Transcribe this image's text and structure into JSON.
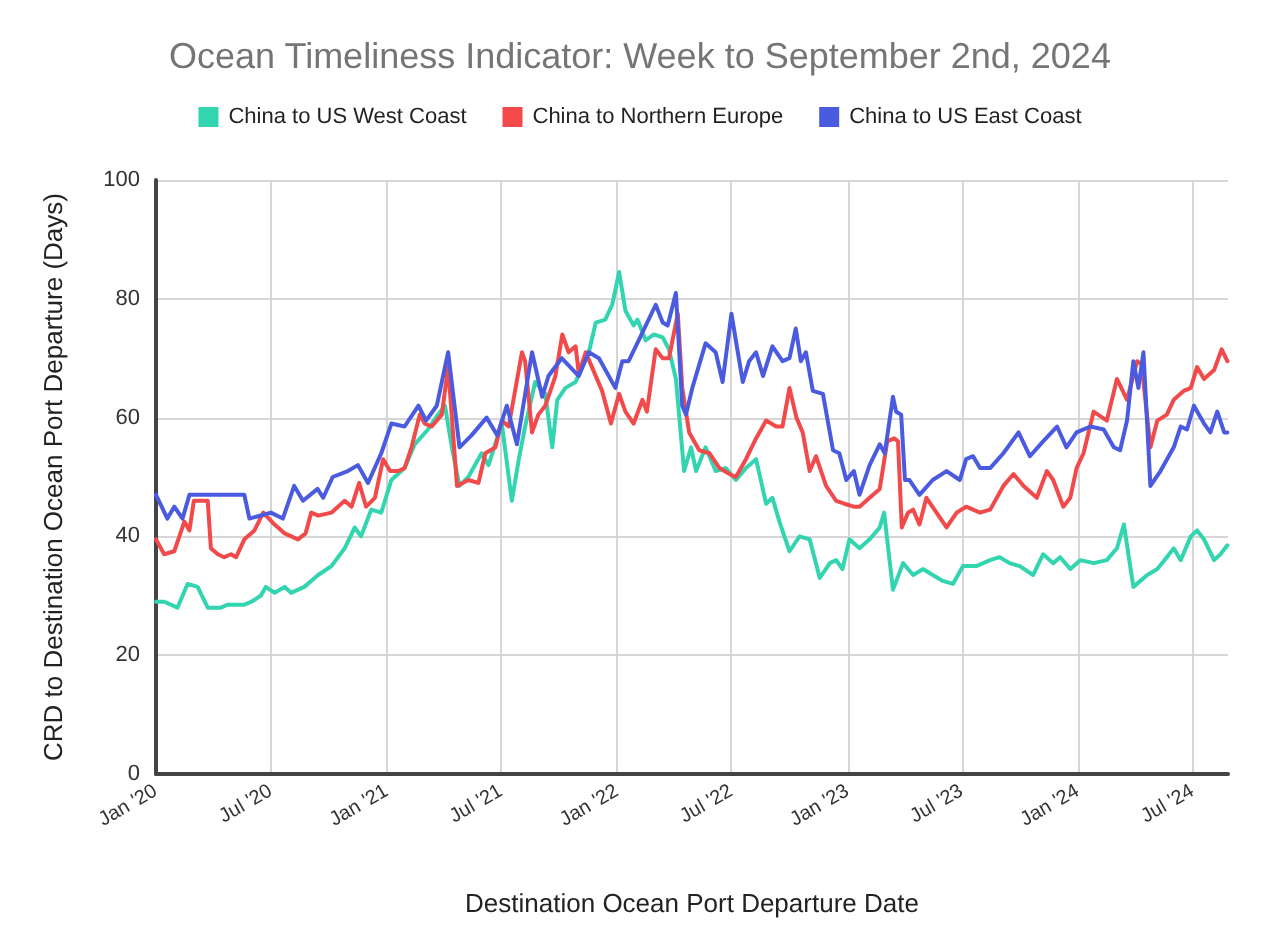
{
  "chart_data": {
    "type": "line",
    "title": "Ocean Timeliness Indicator: Week to September 2nd, 2024",
    "xlabel": "Destination Ocean Port Departure Date",
    "ylabel": "CRD to Destination Ocean Port Departure (Days)",
    "xlim": [
      "2020-01-01",
      "2024-08-26"
    ],
    "xticks": [
      {
        "value": "2020-01-01",
        "label": "Jan '20"
      },
      {
        "value": "2020-07-01",
        "label": "Jul '20"
      },
      {
        "value": "2021-01-01",
        "label": "Jan '21"
      },
      {
        "value": "2021-07-01",
        "label": "Jul '21"
      },
      {
        "value": "2022-01-01",
        "label": "Jan '22"
      },
      {
        "value": "2022-07-01",
        "label": "Jul '22"
      },
      {
        "value": "2023-01-01",
        "label": "Jan '23"
      },
      {
        "value": "2023-07-01",
        "label": "Jul '23"
      },
      {
        "value": "2024-01-01",
        "label": "Jan '24"
      },
      {
        "value": "2024-07-01",
        "label": "Jul '24"
      }
    ],
    "ylim": [
      0,
      100
    ],
    "yticks": [
      0,
      20,
      40,
      60,
      80,
      100
    ],
    "grid": true,
    "legend": "top",
    "marker": "none",
    "line_style": "solid",
    "series": [
      {
        "name": "China to US West Coast",
        "color": "#33d4b0",
        "x": [
          "2020-01-01",
          "2020-01-14",
          "2020-02-04",
          "2020-02-20",
          "2020-03-07",
          "2020-03-23",
          "2020-04-13",
          "2020-04-23",
          "2020-05-20",
          "2020-05-31",
          "2020-06-15",
          "2020-06-23",
          "2020-07-07",
          "2020-07-23",
          "2020-08-02",
          "2020-08-23",
          "2020-09-14",
          "2020-10-05",
          "2020-10-26",
          "2020-11-11",
          "2020-11-21",
          "2020-12-07",
          "2020-12-23",
          "2021-01-08",
          "2021-01-29",
          "2021-02-14",
          "2021-03-07",
          "2021-03-23",
          "2021-04-03",
          "2021-04-14",
          "2021-04-26",
          "2021-05-10",
          "2021-05-31",
          "2021-06-11",
          "2021-07-02",
          "2021-07-18",
          "2021-07-29",
          "2021-08-08",
          "2021-08-24",
          "2021-09-09",
          "2021-09-20",
          "2021-09-28",
          "2021-10-11",
          "2021-10-27",
          "2021-11-06",
          "2021-11-17",
          "2021-11-28",
          "2021-12-13",
          "2021-12-24",
          "2022-01-04",
          "2022-01-14",
          "2022-01-27",
          "2022-02-02",
          "2022-02-15",
          "2022-02-28",
          "2022-03-14",
          "2022-03-24",
          "2022-04-04",
          "2022-04-17",
          "2022-04-28",
          "2022-05-06",
          "2022-05-21",
          "2022-06-06",
          "2022-06-22",
          "2022-07-08",
          "2022-07-24",
          "2022-08-09",
          "2022-08-25",
          "2022-09-04",
          "2022-09-15",
          "2022-10-01",
          "2022-10-17",
          "2022-11-02",
          "2022-11-18",
          "2022-12-04",
          "2022-12-14",
          "2022-12-24",
          "2023-01-04",
          "2023-01-20",
          "2023-02-05",
          "2023-02-21",
          "2023-02-28",
          "2023-03-14",
          "2023-03-30",
          "2023-04-15",
          "2023-05-01",
          "2023-05-16",
          "2023-06-01",
          "2023-06-17",
          "2023-07-03",
          "2023-07-24",
          "2023-08-15",
          "2023-08-30",
          "2023-09-15",
          "2023-10-01",
          "2023-10-22",
          "2023-11-07",
          "2023-11-23",
          "2023-12-04",
          "2023-12-20",
          "2024-01-05",
          "2024-01-26",
          "2024-02-16",
          "2024-03-03",
          "2024-03-14",
          "2024-03-29",
          "2024-04-20",
          "2024-05-06",
          "2024-05-21",
          "2024-06-01",
          "2024-06-12",
          "2024-06-28",
          "2024-07-08",
          "2024-07-19",
          "2024-08-04",
          "2024-08-14",
          "2024-08-25"
        ],
        "values": [
          29,
          29,
          28,
          32,
          31.5,
          28,
          28,
          28.5,
          28.5,
          29,
          30,
          31.5,
          30.5,
          31.5,
          30.5,
          31.5,
          33.5,
          35,
          38,
          41.5,
          40,
          44.5,
          44,
          49.5,
          51.5,
          55.5,
          58,
          60.5,
          62,
          55,
          48.5,
          50,
          54,
          52,
          59,
          46,
          53,
          58.5,
          66,
          64,
          55,
          63,
          65,
          66,
          68.5,
          71,
          76,
          76.5,
          79,
          84.5,
          78,
          75.5,
          76.5,
          73,
          74,
          73.5,
          71.5,
          66.5,
          51,
          55,
          51,
          55,
          51,
          51.5,
          49.5,
          51.5,
          53,
          45.5,
          46.5,
          42.5,
          37.5,
          40,
          39.5,
          33,
          35.5,
          36,
          34.5,
          39.5,
          38,
          39.5,
          41.5,
          44,
          31,
          35.5,
          33.5,
          34.5,
          33.5,
          32.5,
          32,
          35,
          35,
          36,
          36.5,
          35.5,
          35,
          33.5,
          37,
          35.5,
          36.5,
          34.5,
          36,
          35.5,
          36,
          38,
          42,
          31.5,
          33.5,
          34.5,
          36.5,
          38,
          36,
          40,
          41,
          39.5,
          36,
          37,
          38.5
        ]
      },
      {
        "name": "China to Northern Europe",
        "color": "#f24a4a",
        "x": [
          "2020-01-01",
          "2020-01-14",
          "2020-01-30",
          "2020-02-15",
          "2020-02-23",
          "2020-03-01",
          "2020-03-23",
          "2020-03-28",
          "2020-04-08",
          "2020-04-18",
          "2020-04-29",
          "2020-05-07",
          "2020-05-20",
          "2020-06-05",
          "2020-06-19",
          "2020-07-07",
          "2020-07-23",
          "2020-08-13",
          "2020-08-25",
          "2020-09-03",
          "2020-09-14",
          "2020-10-05",
          "2020-10-26",
          "2020-11-06",
          "2020-11-18",
          "2020-11-29",
          "2020-12-13",
          "2020-12-26",
          "2021-01-06",
          "2021-01-19",
          "2021-01-29",
          "2021-02-09",
          "2021-02-22",
          "2021-03-02",
          "2021-03-13",
          "2021-03-29",
          "2021-04-08",
          "2021-04-22",
          "2021-05-10",
          "2021-05-26",
          "2021-06-06",
          "2021-06-22",
          "2021-07-02",
          "2021-07-13",
          "2021-08-03",
          "2021-08-08",
          "2021-08-19",
          "2021-08-29",
          "2021-09-09",
          "2021-09-25",
          "2021-10-06",
          "2021-10-16",
          "2021-10-27",
          "2021-11-01",
          "2021-11-12",
          "2021-11-22",
          "2021-12-08",
          "2021-12-22",
          "2022-01-04",
          "2022-01-14",
          "2022-01-27",
          "2022-02-10",
          "2022-02-17",
          "2022-03-03",
          "2022-03-14",
          "2022-03-24",
          "2022-04-07",
          "2022-04-14",
          "2022-04-25",
          "2022-05-11",
          "2022-05-27",
          "2022-06-12",
          "2022-06-28",
          "2022-07-08",
          "2022-07-24",
          "2022-08-09",
          "2022-08-25",
          "2022-09-10",
          "2022-09-20",
          "2022-10-01",
          "2022-10-12",
          "2022-10-22",
          "2022-11-02",
          "2022-11-12",
          "2022-11-28",
          "2022-12-14",
          "2022-12-27",
          "2023-01-11",
          "2023-01-20",
          "2023-02-05",
          "2023-02-21",
          "2023-03-05",
          "2023-03-16",
          "2023-03-22",
          "2023-03-28",
          "2023-04-07",
          "2023-04-15",
          "2023-04-25",
          "2023-05-06",
          "2023-05-22",
          "2023-06-07",
          "2023-06-23",
          "2023-07-08",
          "2023-07-30",
          "2023-08-15",
          "2023-09-05",
          "2023-09-21",
          "2023-10-07",
          "2023-10-28",
          "2023-11-13",
          "2023-11-23",
          "2023-12-09",
          "2023-12-20",
          "2023-12-30",
          "2024-01-10",
          "2024-01-26",
          "2024-02-16",
          "2024-03-03",
          "2024-03-19",
          "2024-04-04",
          "2024-04-11",
          "2024-04-25",
          "2024-05-06",
          "2024-05-21",
          "2024-06-01",
          "2024-06-17",
          "2024-06-28",
          "2024-07-08",
          "2024-07-19",
          "2024-08-04",
          "2024-08-16",
          "2024-08-25"
        ],
        "values": [
          39.5,
          37,
          37.5,
          42.5,
          41,
          46,
          46,
          38,
          37,
          36.5,
          37,
          36.5,
          39.5,
          41,
          44,
          42,
          40.5,
          39.5,
          40.5,
          44,
          43.5,
          44,
          46,
          45,
          49,
          45,
          46.5,
          53,
          51,
          51,
          51.5,
          55,
          60.5,
          59,
          58.5,
          60.5,
          68.5,
          48.5,
          49.5,
          49,
          54,
          55,
          59.5,
          58.5,
          71,
          69.5,
          57.5,
          60.5,
          62,
          67,
          74,
          71,
          72,
          67.5,
          71,
          68.5,
          64.5,
          59,
          64,
          61,
          59,
          63,
          61,
          71.5,
          70,
          70,
          77.5,
          65,
          57.5,
          54.5,
          54,
          51.5,
          50.5,
          50,
          53,
          56.5,
          59.5,
          58.5,
          58.5,
          65,
          60,
          57.5,
          51,
          53.5,
          48.5,
          46,
          45.5,
          45,
          45,
          46.5,
          48,
          56,
          56.5,
          56,
          41.5,
          44,
          44.5,
          42,
          46.5,
          44,
          41.5,
          44,
          45,
          44,
          44.5,
          48.5,
          50.5,
          48.5,
          46.5,
          51,
          49.5,
          45,
          46.5,
          51.5,
          54,
          61,
          59.5,
          66.5,
          63,
          69.5,
          69,
          55,
          59.5,
          60.5,
          63,
          64.5,
          65,
          68.5,
          66.5,
          68,
          71.5,
          69.5
        ]
      },
      {
        "name": "China to US East Coast",
        "color": "#4a5be0",
        "x": [
          "2020-01-01",
          "2020-01-19",
          "2020-01-30",
          "2020-02-12",
          "2020-02-23",
          "2020-05-20",
          "2020-05-28",
          "2020-07-01",
          "2020-07-20",
          "2020-08-07",
          "2020-08-21",
          "2020-09-13",
          "2020-09-22",
          "2020-10-07",
          "2020-10-31",
          "2020-11-16",
          "2020-12-02",
          "2020-12-23",
          "2021-01-08",
          "2021-01-29",
          "2021-02-20",
          "2021-03-04",
          "2021-03-21",
          "2021-04-08",
          "2021-04-26",
          "2021-05-15",
          "2021-06-08",
          "2021-06-25",
          "2021-07-10",
          "2021-07-26",
          "2021-08-19",
          "2021-09-04",
          "2021-09-14",
          "2021-10-05",
          "2021-11-01",
          "2021-11-17",
          "2021-12-03",
          "2021-12-29",
          "2022-01-09",
          "2022-01-19",
          "2022-02-04",
          "2022-03-03",
          "2022-03-14",
          "2022-03-22",
          "2022-04-04",
          "2022-04-14",
          "2022-04-20",
          "2022-04-30",
          "2022-05-21",
          "2022-06-06",
          "2022-06-17",
          "2022-07-01",
          "2022-07-08",
          "2022-07-19",
          "2022-07-29",
          "2022-08-09",
          "2022-08-20",
          "2022-09-04",
          "2022-09-20",
          "2022-10-01",
          "2022-10-11",
          "2022-10-19",
          "2022-10-27",
          "2022-11-07",
          "2022-11-23",
          "2022-12-09",
          "2022-12-19",
          "2022-12-30",
          "2023-01-11",
          "2023-01-20",
          "2023-02-05",
          "2023-02-21",
          "2023-03-01",
          "2023-03-14",
          "2023-03-19",
          "2023-03-27",
          "2023-04-02",
          "2023-04-09",
          "2023-04-25",
          "2023-05-16",
          "2023-06-07",
          "2023-06-28",
          "2023-07-08",
          "2023-07-19",
          "2023-07-30",
          "2023-08-15",
          "2023-09-05",
          "2023-09-29",
          "2023-10-17",
          "2023-11-07",
          "2023-11-29",
          "2023-12-14",
          "2023-12-30",
          "2024-01-21",
          "2024-02-11",
          "2024-02-27",
          "2024-03-08",
          "2024-03-19",
          "2024-03-29",
          "2024-04-06",
          "2024-04-14",
          "2024-04-25",
          "2024-05-11",
          "2024-06-01",
          "2024-06-12",
          "2024-06-22",
          "2024-07-03",
          "2024-07-19",
          "2024-07-29",
          "2024-08-09",
          "2024-08-20",
          "2024-08-25"
        ],
        "values": [
          47,
          43,
          45,
          43,
          47,
          47,
          43,
          44,
          43,
          48.5,
          46,
          48,
          46.5,
          50,
          51,
          52,
          49,
          54,
          59,
          58.5,
          62,
          59.5,
          62,
          71,
          55,
          57,
          60,
          57,
          62,
          55.5,
          71,
          63.5,
          67,
          70,
          67,
          71,
          70,
          65,
          69.5,
          69.5,
          73,
          79,
          76,
          75.5,
          81,
          62,
          60.5,
          65,
          72.5,
          71,
          66,
          77.5,
          73,
          66,
          69.5,
          71,
          67,
          72,
          69.5,
          70,
          75,
          69.5,
          71,
          64.5,
          64,
          54.5,
          54,
          49.5,
          51,
          47,
          52,
          55.5,
          54,
          63.5,
          61,
          60.5,
          49.5,
          49.5,
          47,
          49.5,
          51,
          49.5,
          53,
          53.5,
          51.5,
          51.5,
          54,
          57.5,
          53.5,
          56,
          58.5,
          55,
          57.5,
          58.5,
          58,
          55,
          54.5,
          59.5,
          69.5,
          65,
          71,
          48.5,
          51,
          55,
          58.5,
          58,
          62,
          59,
          57.5,
          61,
          57.5,
          57.5
        ]
      }
    ]
  }
}
